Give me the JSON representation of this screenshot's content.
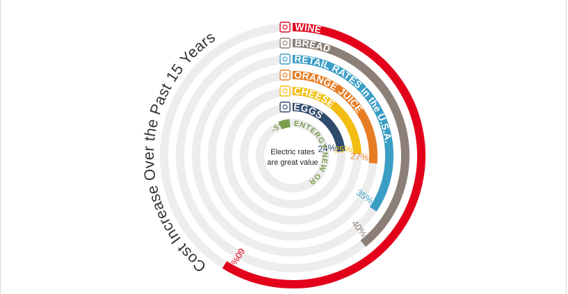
{
  "title": "Cost Increase Over the Past 15 Years",
  "center_text": [
    "Electric rates",
    "are great value"
  ],
  "chart_data": {
    "type": "radial-bar",
    "title": "Cost Increase Over the Past 15 Years",
    "series": [
      {
        "name": "WINE",
        "value": 60,
        "display": "60%",
        "color": "#e2001a",
        "icon": "wine-glass-icon"
      },
      {
        "name": "BREAD",
        "value": 40,
        "display": "40%",
        "color": "#8b7f77",
        "icon": "bread-icon"
      },
      {
        "name": "RETAIL RATES in the U.S.A.",
        "value": 35,
        "display": "35%",
        "color": "#3b9ec4",
        "icon": "shopping-cart-icon"
      },
      {
        "name": "ORANGE JUICE",
        "value": 27,
        "display": "27%",
        "color": "#e67c23",
        "icon": "juice-glass-icon"
      },
      {
        "name": "CHEESE",
        "value": 25,
        "display": "25%",
        "color": "#f2bd12",
        "icon": "cheese-icon"
      },
      {
        "name": "EGGS",
        "value": 24,
        "display": "24%",
        "color": "#2f4a6c",
        "icon": "eggs-icon"
      },
      {
        "name": "ENTERGY NEW ORLEANS RESIDENTIAL RATES",
        "value": -5,
        "display": "-5%",
        "color": "#7a9e4f",
        "icon": "building-icon"
      }
    ],
    "track_color": "#ededed"
  }
}
